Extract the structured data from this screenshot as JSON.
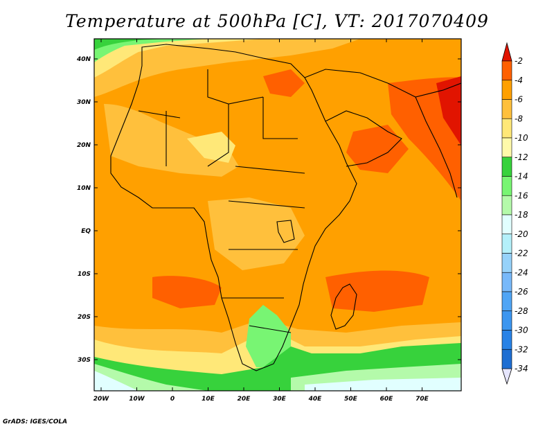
{
  "title": "Temperature at 500hPa [C], VT: 2017070409",
  "credit": "GrADS: IGES/COLA",
  "map": {
    "lat_labels": [
      "40N",
      "30N",
      "20N",
      "10N",
      "EQ",
      "10S",
      "20S",
      "30S"
    ],
    "lon_labels": [
      "20W",
      "10W",
      "0",
      "10E",
      "20E",
      "30E",
      "40E",
      "50E",
      "60E",
      "70E"
    ]
  },
  "colorbar": {
    "labels": [
      "-2",
      "-4",
      "-6",
      "-8",
      "-10",
      "-12",
      "-14",
      "-16",
      "-18",
      "-20",
      "-22",
      "-24",
      "-26",
      "-28",
      "-30",
      "-32",
      "-34"
    ],
    "colors": [
      "#a0c8f0",
      "#1e6ed2",
      "#2882e6",
      "#3c96f0",
      "#50a5f5",
      "#78b9fa",
      "#96d2fa",
      "#b4f0fa",
      "#e1ffff",
      "#b4faaa",
      "#78f573",
      "#37d23c",
      "#fffaaa",
      "#ffe878",
      "#ffc03c",
      "#ffa000",
      "#ff6000",
      "#e11400"
    ]
  }
}
